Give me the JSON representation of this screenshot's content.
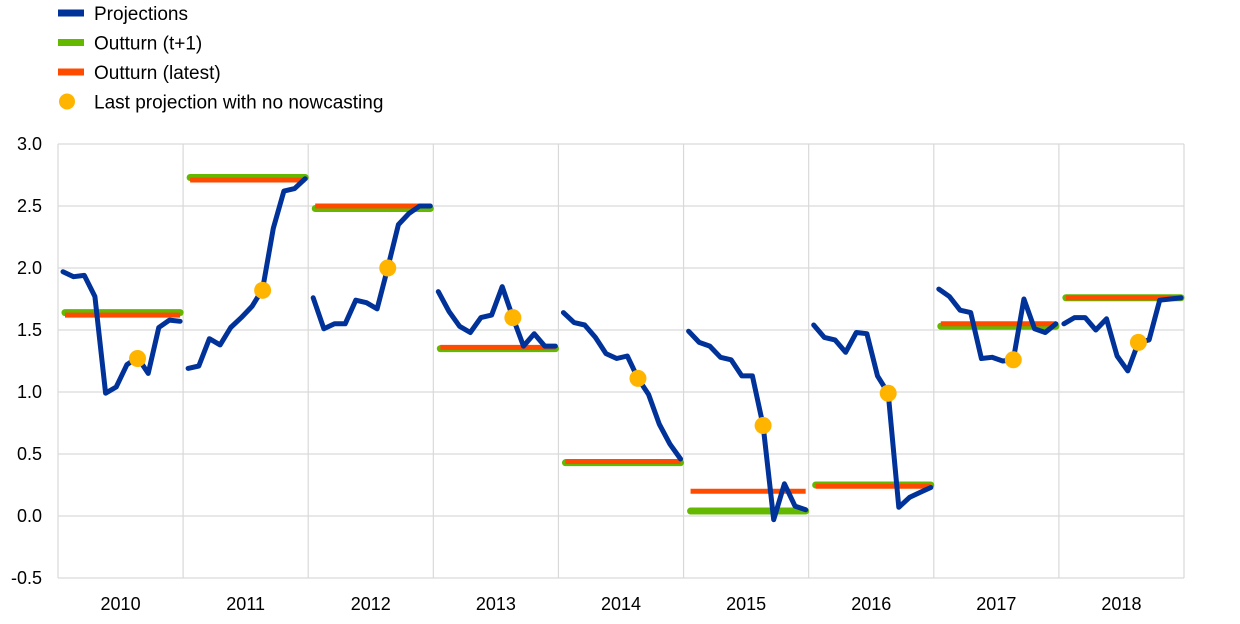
{
  "colors": {
    "projections": "#003299",
    "outturn_t1": "#65b800",
    "outturn_latest": "#ff4b00",
    "last_projection": "#ffb400",
    "grid": "#d9d9d9"
  },
  "chart_data": {
    "type": "line",
    "title": "",
    "xlabel": "",
    "ylabel": "",
    "ylim": [
      -0.5,
      3.0
    ],
    "yticks": [
      "3.0",
      "2.5",
      "2.0",
      "1.5",
      "1.0",
      "0.5",
      "0.0",
      "-0.5"
    ],
    "grid": true,
    "legend_position": "top-left",
    "legend": [
      {
        "label": "Projections",
        "kind": "line",
        "color_key": "projections"
      },
      {
        "label": "Outturn (t+1)",
        "kind": "line",
        "color_key": "outturn_t1"
      },
      {
        "label": "Outturn (latest)",
        "kind": "line",
        "color_key": "outturn_latest"
      },
      {
        "label": "Last projection with no nowcasting",
        "kind": "dot",
        "color_key": "last_projection"
      }
    ],
    "years": [
      {
        "label": "2010",
        "outturn_t1": 1.64,
        "outturn_latest": 1.62,
        "last_projection": 1.27,
        "projections": [
          1.97,
          1.93,
          1.94,
          1.77,
          0.99,
          1.04,
          1.22,
          1.28,
          1.15,
          1.52,
          1.58,
          1.57
        ]
      },
      {
        "label": "2011",
        "outturn_t1": 2.73,
        "outturn_latest": 2.71,
        "last_projection": 1.82,
        "projections": [
          1.19,
          1.21,
          1.43,
          1.38,
          1.52,
          1.6,
          1.69,
          1.83,
          2.32,
          2.62,
          2.64,
          2.72
        ]
      },
      {
        "label": "2012",
        "outturn_t1": 2.48,
        "outturn_latest": 2.5,
        "last_projection": 2.0,
        "projections": [
          1.76,
          1.51,
          1.55,
          1.55,
          1.74,
          1.72,
          1.67,
          2.0,
          2.35,
          2.44,
          2.5,
          2.5
        ]
      },
      {
        "label": "2013",
        "outturn_t1": 1.35,
        "outturn_latest": 1.36,
        "last_projection": 1.6,
        "projections": [
          1.81,
          1.65,
          1.53,
          1.48,
          1.6,
          1.62,
          1.85,
          1.6,
          1.37,
          1.47,
          1.37,
          1.37
        ]
      },
      {
        "label": "2014",
        "outturn_t1": 0.43,
        "outturn_latest": 0.44,
        "last_projection": 1.11,
        "projections": [
          1.64,
          1.56,
          1.54,
          1.44,
          1.31,
          1.27,
          1.29,
          1.11,
          0.98,
          0.74,
          0.58,
          0.46
        ]
      },
      {
        "label": "2015",
        "outturn_t1": 0.04,
        "outturn_latest": 0.2,
        "last_projection": 0.73,
        "projections": [
          1.49,
          1.4,
          1.37,
          1.28,
          1.26,
          1.13,
          1.13,
          0.73,
          -0.03,
          0.26,
          0.08,
          0.05
        ]
      },
      {
        "label": "2016",
        "outturn_t1": 0.25,
        "outturn_latest": 0.24,
        "last_projection": 0.99,
        "projections": [
          1.54,
          1.44,
          1.42,
          1.32,
          1.48,
          1.47,
          1.13,
          0.99,
          0.07,
          0.15,
          0.19,
          0.23
        ]
      },
      {
        "label": "2017",
        "outturn_t1": 1.53,
        "outturn_latest": 1.55,
        "last_projection": 1.26,
        "projections": [
          1.83,
          1.77,
          1.66,
          1.64,
          1.27,
          1.28,
          1.25,
          1.26,
          1.75,
          1.51,
          1.48,
          1.55
        ]
      },
      {
        "label": "2018",
        "outturn_t1": 1.76,
        "outturn_latest": 1.76,
        "last_projection": 1.4,
        "projections": [
          1.55,
          1.6,
          1.6,
          1.5,
          1.59,
          1.29,
          1.17,
          1.4,
          1.42,
          1.74,
          1.75,
          1.76
        ]
      }
    ]
  }
}
